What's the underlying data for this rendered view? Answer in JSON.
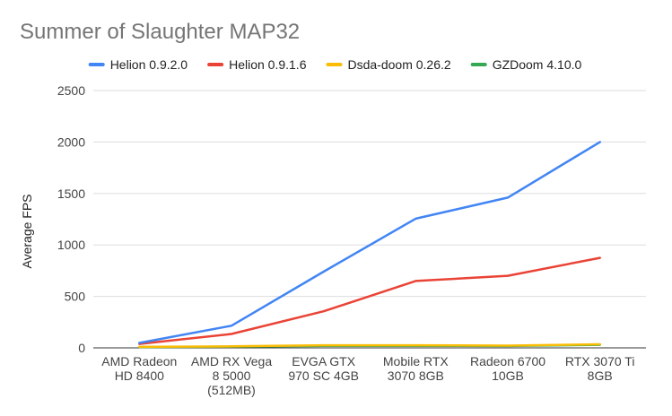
{
  "chart_data": {
    "type": "line",
    "title": "Summer of Slaughter MAP32",
    "xlabel": "",
    "ylabel": "Average FPS",
    "ylim": [
      0,
      2500
    ],
    "yticks": [
      0,
      500,
      1000,
      1500,
      2000,
      2500
    ],
    "grid": true,
    "legend_position": "top",
    "categories": [
      [
        "AMD Radeon",
        "HD 8400"
      ],
      [
        "AMD RX Vega",
        "8 5000",
        "(512MB)"
      ],
      [
        "EVGA GTX",
        "970 SC 4GB"
      ],
      [
        "Mobile RTX",
        "3070 8GB"
      ],
      [
        "Radeon 6700",
        "10GB"
      ],
      [
        "RTX 3070 Ti",
        "8GB"
      ]
    ],
    "series": [
      {
        "name": "Helion 0.9.2.0",
        "color": "#4285f4",
        "values": [
          48,
          215,
          740,
          1255,
          1460,
          2000
        ]
      },
      {
        "name": "Helion 0.9.1.6",
        "color": "#ea4335",
        "values": [
          38,
          135,
          355,
          650,
          700,
          875
        ]
      },
      {
        "name": "Dsda-doom 0.26.2",
        "color": "#fbbc04",
        "values": [
          10,
          15,
          25,
          25,
          22,
          35
        ]
      },
      {
        "name": "GZDoom 4.10.0",
        "color": "#34a853",
        "values": [
          8,
          12,
          20,
          20,
          18,
          30
        ]
      }
    ]
  }
}
